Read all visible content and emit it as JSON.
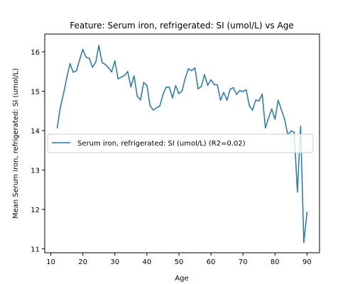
{
  "chart_data": {
    "type": "line",
    "title": "Feature: Serum iron, refrigerated: SI (umol/L) vs Age",
    "xlabel": "Age",
    "ylabel": "Mean Serum iron, refrigerated: SI (umol/L)",
    "xlim": [
      8.1,
      93.9
    ],
    "ylim": [
      10.9,
      16.45
    ],
    "xticks": [
      10,
      20,
      30,
      40,
      50,
      60,
      70,
      80,
      90
    ],
    "yticks": [
      11,
      12,
      13,
      14,
      15,
      16
    ],
    "grid": false,
    "legend_placement": "center-left",
    "series": [
      {
        "name": "Serum iron, refrigerated: SI (umol/L) (R2=0.02)",
        "color": "#1f77b4",
        "x": [
          12,
          13,
          14,
          15,
          16,
          17,
          18,
          19,
          20,
          21,
          22,
          23,
          24,
          25,
          26,
          27,
          28,
          29,
          30,
          31,
          32,
          33,
          34,
          35,
          36,
          37,
          38,
          39,
          40,
          41,
          42,
          43,
          44,
          45,
          46,
          47,
          48,
          49,
          50,
          51,
          52,
          53,
          54,
          55,
          56,
          57,
          58,
          59,
          60,
          61,
          62,
          63,
          64,
          65,
          66,
          67,
          68,
          69,
          70,
          71,
          72,
          73,
          74,
          75,
          76,
          77,
          78,
          79,
          80,
          81,
          82,
          83,
          84,
          85,
          86,
          87,
          88,
          89,
          90
        ],
        "y": [
          14.07,
          14.6,
          14.95,
          15.35,
          15.7,
          15.48,
          15.52,
          15.8,
          16.06,
          15.86,
          15.84,
          15.61,
          15.73,
          16.16,
          15.73,
          15.68,
          15.6,
          15.49,
          15.77,
          15.31,
          15.36,
          15.4,
          15.5,
          15.11,
          15.39,
          14.87,
          14.78,
          15.22,
          15.15,
          14.63,
          14.52,
          14.58,
          14.62,
          14.91,
          15.1,
          15.1,
          14.83,
          15.14,
          14.94,
          15.01,
          15.34,
          15.57,
          15.52,
          15.59,
          15.06,
          15.12,
          15.42,
          15.15,
          15.29,
          15.17,
          15.16,
          14.77,
          14.97,
          14.77,
          15.05,
          15.09,
          14.92,
          15.02,
          14.99,
          15.04,
          14.63,
          14.52,
          14.78,
          14.75,
          14.93,
          14.07,
          14.32,
          14.55,
          14.29,
          14.77,
          14.53,
          14.29,
          13.89,
          13.99,
          13.96,
          12.44,
          14.11,
          11.16,
          11.93
        ]
      }
    ]
  }
}
